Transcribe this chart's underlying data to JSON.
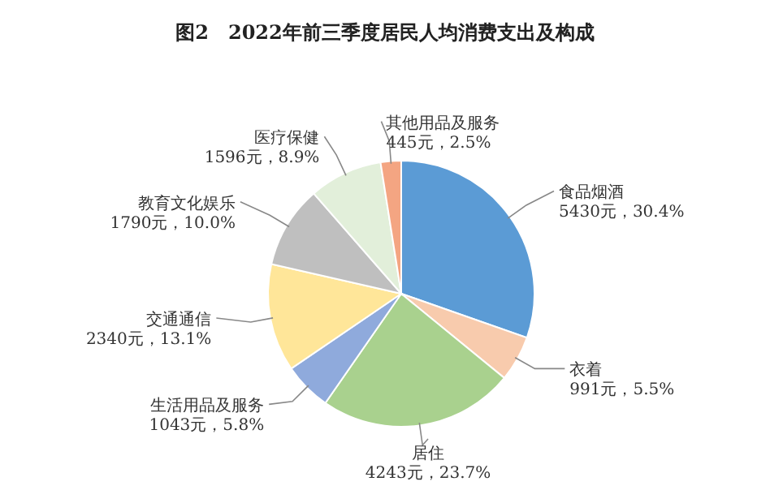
{
  "chart_data": {
    "type": "pie",
    "title": "图2　2022年前三季度居民人均消费支出及构成",
    "categories": [
      "食品烟酒",
      "衣着",
      "居住",
      "生活用品及服务",
      "交通通信",
      "教育文化娱乐",
      "医疗保健",
      "其他用品及服务"
    ],
    "values": [
      5430,
      991,
      4243,
      1043,
      2340,
      1790,
      1596,
      445
    ],
    "value_labels": [
      "5430元，30.4%",
      "991元，5.5%",
      "4243元，23.7%",
      "1043元，5.8%",
      "2340元，13.1%",
      "1790元，10.0%",
      "1596元，8.9%",
      "445元，2.5%"
    ],
    "colors": [
      "#5b9bd5",
      "#f8cbad",
      "#a9d18e",
      "#8faadc",
      "#ffe699",
      "#bfbfbf",
      "#e2efda",
      "#f4a582"
    ]
  }
}
